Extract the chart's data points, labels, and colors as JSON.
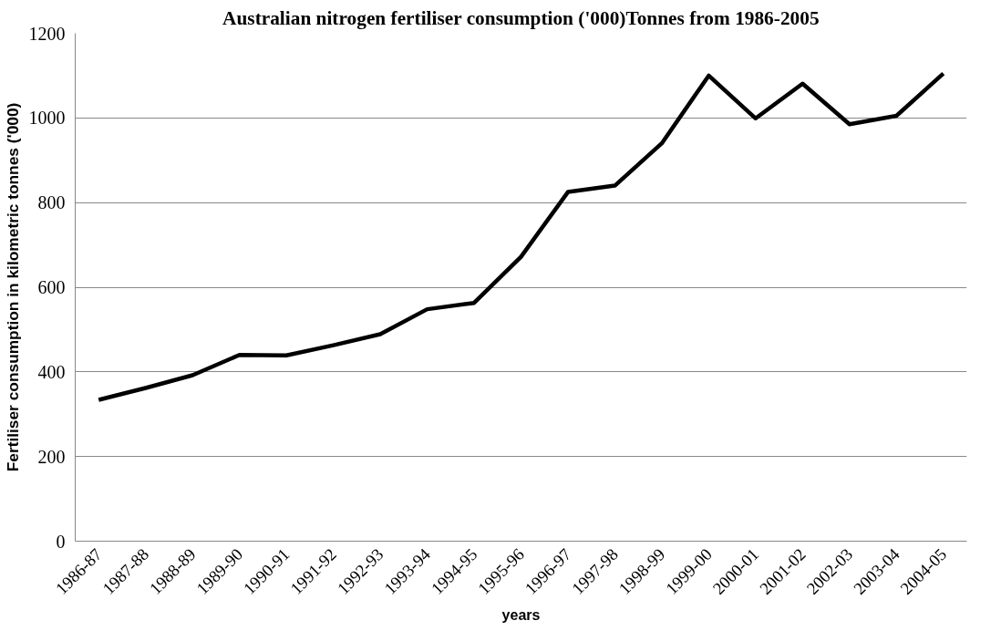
{
  "chart_data": {
    "type": "line",
    "title": "Australian nitrogen fertiliser consumption ('000)Tonnes from 1986-2005",
    "xlabel": "years",
    "ylabel": "Fertiliser consumption in kilometric tonnes ('000)",
    "categories": [
      "1986-87",
      "1987-88",
      "1988-89",
      "1989-90",
      "1990-91",
      "1991-92",
      "1992-93",
      "1993-94",
      "1994-95",
      "1995-96",
      "1996-97",
      "1997-98",
      "1998-99",
      "1999-00",
      "2000-01",
      "2001-02",
      "2002-03",
      "2003-04",
      "2004-05"
    ],
    "series": [
      {
        "color": "#000000",
        "values": [
          334,
          362,
          392,
          440,
          439,
          463,
          489,
          548,
          563,
          672,
          825,
          840,
          940,
          1100,
          999,
          1081,
          985,
          1005,
          1105
        ]
      }
    ],
    "ylim": [
      0,
      1200
    ],
    "yticks": [
      0,
      200,
      400,
      600,
      800,
      1000,
      1200
    ],
    "grid": "y",
    "marker": "none",
    "line_style": "solid"
  }
}
